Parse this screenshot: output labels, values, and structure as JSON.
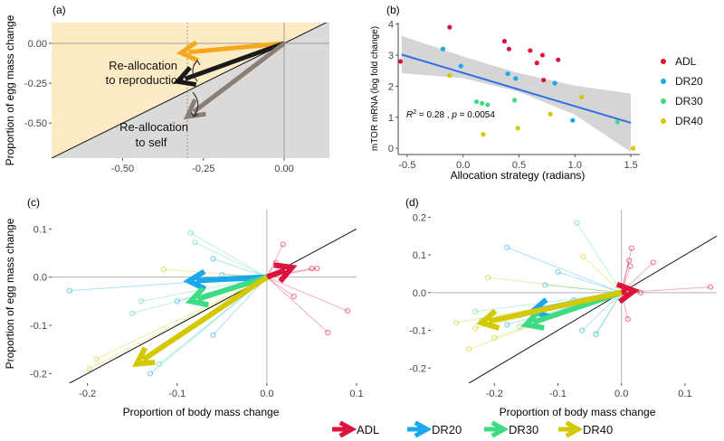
{
  "colors": {
    "ADL": "#dc143c",
    "DR20": "#1aa7ec",
    "DR30": "#3ddc84",
    "DR40": "#d4c800",
    "orange": "#f5a81b",
    "black": "#1a1a1a",
    "grey": "#8a7f76",
    "conf": "#d0d0d0",
    "fit": "#2f6fe0"
  },
  "chart_data": [
    {
      "panel": "(a)",
      "type": "line",
      "ylabel": "Proportion of egg mass change",
      "xlim": [
        -0.72,
        0.14
      ],
      "ylim": [
        -0.72,
        0.13
      ],
      "x_ticks": [
        "-0.50",
        "-0.25",
        "0.00"
      ],
      "x_tick_values": [
        -0.5,
        -0.25,
        0.0
      ],
      "y_ticks": [
        "0.00",
        "-0.25",
        "-0.50"
      ],
      "y_tick_values": [
        0.0,
        -0.25,
        -0.5
      ],
      "vline": -0.3,
      "arrows": [
        {
          "color": "orange",
          "from": [
            0.0,
            0.0
          ],
          "to": [
            -0.32,
            -0.06
          ]
        },
        {
          "color": "black",
          "from": [
            0.0,
            0.0
          ],
          "to": [
            -0.33,
            -0.24
          ]
        },
        {
          "color": "grey",
          "from": [
            0.0,
            0.0
          ],
          "to": [
            -0.3,
            -0.46
          ]
        }
      ],
      "annotations": [
        "Re-allocation",
        "to reproduction",
        "Re-allocation",
        "to self"
      ]
    },
    {
      "panel": "(b)",
      "type": "scatter",
      "xlabel": "Allocation strategy (radians)",
      "ylabel": "mTOR mRNA (log fold change)",
      "xlim": [
        -0.58,
        1.58
      ],
      "ylim": [
        -0.2,
        4.05
      ],
      "x_ticks": [
        "-0.5",
        "0.0",
        "0.5",
        "1.0",
        "1.5"
      ],
      "x_tick_values": [
        -0.5,
        0.0,
        0.5,
        1.0,
        1.5
      ],
      "y_ticks": [
        "0",
        "1",
        "2",
        "3",
        "4"
      ],
      "y_tick_values": [
        0,
        1,
        2,
        3,
        4
      ],
      "fit": {
        "x": [
          -0.55,
          1.5
        ],
        "y": [
          3.02,
          0.82
        ]
      },
      "band": {
        "x": [
          -0.55,
          0.0,
          0.5,
          1.0,
          1.5
        ],
        "upper": [
          3.62,
          2.96,
          2.42,
          2.02,
          1.76
        ],
        "lower": [
          2.42,
          2.26,
          1.82,
          1.08,
          -0.12
        ]
      },
      "annotation": {
        "r2": "0.28",
        "p": "0.0054"
      },
      "legend": [
        "ADL",
        "DR20",
        "DR30",
        "DR40"
      ],
      "series": [
        {
          "name": "ADL",
          "x": [
            -0.56,
            -0.12,
            0.37,
            0.41,
            0.6,
            0.66,
            0.71,
            0.72,
            0.85
          ],
          "y": [
            2.8,
            3.9,
            3.45,
            3.2,
            3.15,
            2.75,
            3.0,
            2.2,
            2.85
          ]
        },
        {
          "name": "DR20",
          "x": [
            -0.18,
            -0.02,
            0.4,
            0.47,
            0.82,
            0.98
          ],
          "y": [
            3.2,
            2.65,
            2.4,
            2.25,
            2.1,
            0.9
          ]
        },
        {
          "name": "DR30",
          "x": [
            0.12,
            0.17,
            0.22,
            0.46,
            1.38
          ],
          "y": [
            1.5,
            1.45,
            1.4,
            1.55,
            0.85
          ]
        },
        {
          "name": "DR40",
          "x": [
            -0.12,
            0.18,
            0.49,
            0.78,
            1.06,
            1.52
          ],
          "y": [
            2.35,
            0.45,
            0.65,
            1.1,
            1.65,
            0.0
          ]
        }
      ]
    },
    {
      "panel": "(c)",
      "type": "line",
      "xlabel": "Proportion of body mass change",
      "ylabel": "Proportion of egg mass change",
      "xlim": [
        -0.24,
        0.1
      ],
      "ylim": [
        -0.22,
        0.14
      ],
      "x_ticks": [
        "-0.2",
        "-0.1",
        "0.0",
        "0.1"
      ],
      "x_tick_values": [
        -0.2,
        -0.1,
        0.0,
        0.1
      ],
      "y_ticks": [
        "0.1",
        "0.0",
        "-0.1",
        "-0.2"
      ],
      "y_tick_values": [
        0.1,
        0.0,
        -0.1,
        -0.2
      ],
      "diagonal_slope": 1,
      "mean_arrows": [
        {
          "name": "ADL",
          "to": [
            0.028,
            0.02
          ]
        },
        {
          "name": "DR20",
          "to": [
            -0.087,
            -0.008
          ]
        },
        {
          "name": "DR30",
          "to": [
            -0.085,
            -0.05
          ]
        },
        {
          "name": "DR40",
          "to": [
            -0.145,
            -0.18
          ]
        }
      ],
      "individuals": [
        {
          "name": "ADL",
          "points": [
            [
              0.018,
              0.068
            ],
            [
              0.01,
              0.03
            ],
            [
              0.05,
              0.018
            ],
            [
              0.056,
              0.018
            ],
            [
              0.09,
              -0.07
            ],
            [
              0.068,
              -0.115
            ],
            [
              0.03,
              -0.04
            ]
          ]
        },
        {
          "name": "DR20",
          "points": [
            [
              -0.22,
              -0.028
            ],
            [
              -0.06,
              0.038
            ],
            [
              -0.05,
              0.005
            ],
            [
              -0.1,
              -0.05
            ],
            [
              -0.06,
              -0.12
            ],
            [
              -0.13,
              -0.2
            ]
          ]
        },
        {
          "name": "DR30",
          "points": [
            [
              -0.085,
              0.092
            ],
            [
              -0.08,
              0.072
            ],
            [
              -0.15,
              -0.075
            ],
            [
              -0.14,
              -0.05
            ],
            [
              -0.12,
              -0.18
            ]
          ]
        },
        {
          "name": "DR40",
          "points": [
            [
              -0.115,
              0.016
            ],
            [
              -0.198,
              -0.19
            ],
            [
              -0.19,
              -0.17
            ]
          ]
        }
      ]
    },
    {
      "panel": "(d)",
      "type": "line",
      "xlabel": "Proportion of body mass change",
      "xlim": [
        -0.3,
        0.15
      ],
      "ylim": [
        -0.24,
        0.22
      ],
      "x_ticks": [
        "-0.2",
        "-0.1",
        "0.0",
        "0.1"
      ],
      "x_tick_values": [
        -0.2,
        -0.1,
        0.0,
        0.1
      ],
      "y_ticks": [
        "0.2",
        "0.1",
        "0.0",
        "-0.1",
        "-0.2"
      ],
      "y_tick_values": [
        0.2,
        0.1,
        0.0,
        -0.1,
        -0.2
      ],
      "diagonal_slope": 1,
      "mean_arrows": [
        {
          "name": "ADL",
          "to": [
            0.02,
            0.005
          ]
        },
        {
          "name": "DR20",
          "to": [
            -0.14,
            -0.05
          ]
        },
        {
          "name": "DR30",
          "to": [
            -0.15,
            -0.085
          ]
        },
        {
          "name": "DR40",
          "to": [
            -0.22,
            -0.08
          ]
        }
      ],
      "individuals": [
        {
          "name": "ADL",
          "points": [
            [
              0.016,
              0.118
            ],
            [
              0.012,
              0.085
            ],
            [
              0.014,
              0.07
            ],
            [
              0.03,
              0.0
            ],
            [
              0.14,
              0.015
            ],
            [
              0.05,
              0.08
            ],
            [
              0.01,
              -0.07
            ]
          ]
        },
        {
          "name": "DR20",
          "points": [
            [
              -0.18,
              0.12
            ],
            [
              -0.1,
              0.055
            ],
            [
              -0.12,
              0.02
            ],
            [
              -0.16,
              -0.06
            ],
            [
              -0.18,
              -0.085
            ],
            [
              -0.075,
              -0.02
            ],
            [
              -0.062,
              -0.1
            ],
            [
              -0.04,
              -0.11
            ],
            [
              -0.04,
              -0.02
            ]
          ]
        },
        {
          "name": "DR30",
          "points": [
            [
              -0.07,
              0.185
            ],
            [
              -0.23,
              -0.05
            ],
            [
              -0.22,
              -0.075
            ],
            [
              -0.16,
              -0.09
            ],
            [
              -0.04,
              -0.11
            ]
          ]
        },
        {
          "name": "DR40",
          "points": [
            [
              -0.06,
              0.095
            ],
            [
              -0.21,
              0.04
            ],
            [
              -0.26,
              -0.08
            ],
            [
              -0.24,
              -0.15
            ],
            [
              -0.2,
              -0.12
            ],
            [
              -0.23,
              -0.095
            ]
          ]
        }
      ]
    }
  ],
  "legend_bottom": {
    "items": [
      "ADL",
      "DR20",
      "DR30",
      "DR40"
    ]
  },
  "labels": {
    "a": "(a)",
    "b": "(b)",
    "c": "(c)",
    "d": "(d)",
    "a_ylabel": "Proportion of egg mass change",
    "a_ann1": "Re-allocation",
    "a_ann2": "to reproduction",
    "a_ann3": "Re-allocation",
    "a_ann4": "to self",
    "b_xlabel": "Allocation strategy (radians)",
    "b_ylabel": "mTOR mRNA (log fold change)",
    "b_r2_lead": "R",
    "b_r2_sup": "2",
    "b_r2_val": " = 0.28 , ",
    "b_p_lead": "p",
    "b_p_val": " = 0.0054",
    "c_xlabel": "Proportion of body mass change",
    "c_ylabel": "Proportion of egg mass change",
    "d_xlabel": "Proportion of body mass change"
  }
}
